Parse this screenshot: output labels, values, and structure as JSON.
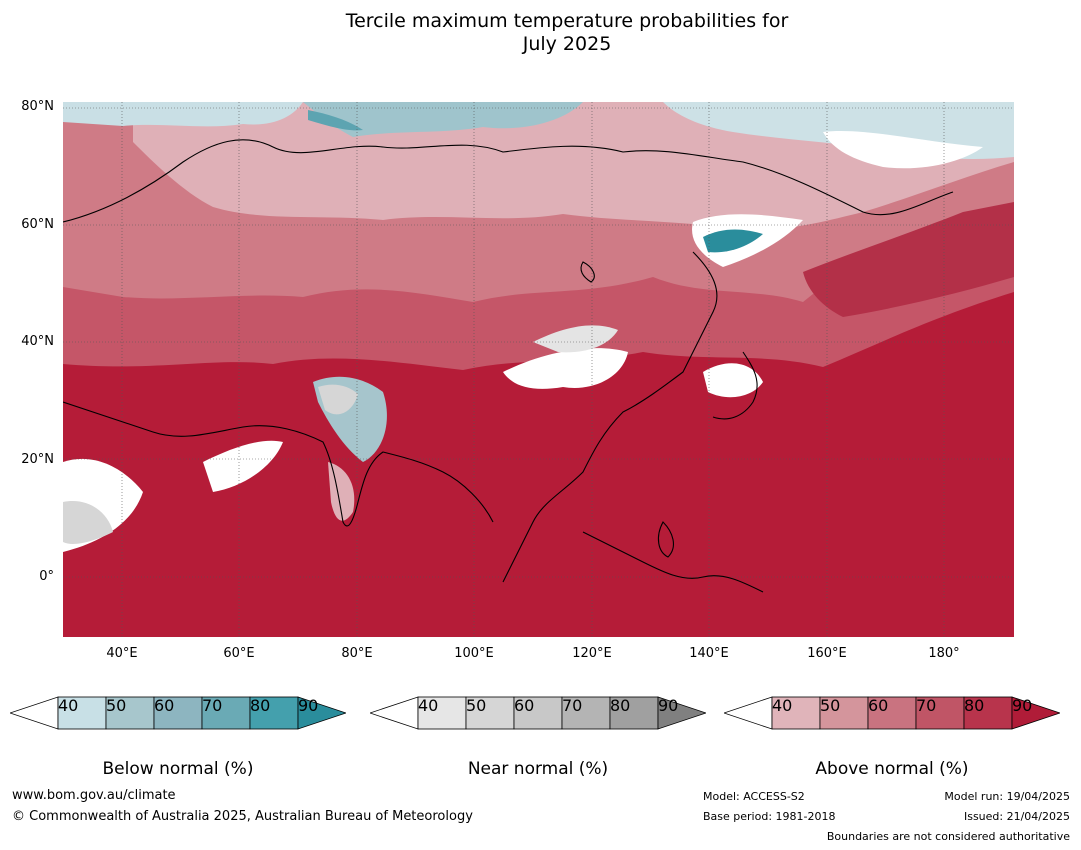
{
  "title_line1": "Tercile maximum temperature probabilities for",
  "title_line2": "July 2025",
  "lat_labels": [
    "80°N",
    "60°N",
    "40°N",
    "20°N",
    "0°"
  ],
  "lon_labels": [
    "40°E",
    "60°E",
    "80°E",
    "100°E",
    "120°E",
    "140°E",
    "160°E",
    "180°"
  ],
  "colorbars": [
    {
      "label": "Below normal (%)",
      "ticks": [
        "40",
        "50",
        "60",
        "70",
        "80",
        "90"
      ],
      "colors": [
        "#ffffff",
        "#c8e0e6",
        "#a7c6cc",
        "#8db5c0",
        "#6aaab5",
        "#44a0ad",
        "#2a8d9c"
      ]
    },
    {
      "label": "Near normal (%)",
      "ticks": [
        "40",
        "50",
        "60",
        "70",
        "80",
        "90"
      ],
      "colors": [
        "#ffffff",
        "#e6e6e6",
        "#d6d6d6",
        "#c8c8c8",
        "#b4b4b4",
        "#a0a0a0",
        "#808080"
      ]
    },
    {
      "label": "Above normal (%)",
      "ticks": [
        "40",
        "50",
        "60",
        "70",
        "80",
        "90"
      ],
      "colors": [
        "#ffffff",
        "#e0b4ba",
        "#d4959c",
        "#c97380",
        "#c05566",
        "#b8344c",
        "#b01c38"
      ]
    }
  ],
  "footer": {
    "url": "www.bom.gov.au/climate",
    "copyright": "© Commonwealth of Australia 2025, Australian Bureau of Meteorology",
    "model": "Model: ACCESS-S2",
    "base_period": "Base period: 1981-2018",
    "model_run": "Model run: 19/04/2025",
    "issued": "Issued: 21/04/2025",
    "disclaimer": "Boundaries are not considered authoritative"
  }
}
